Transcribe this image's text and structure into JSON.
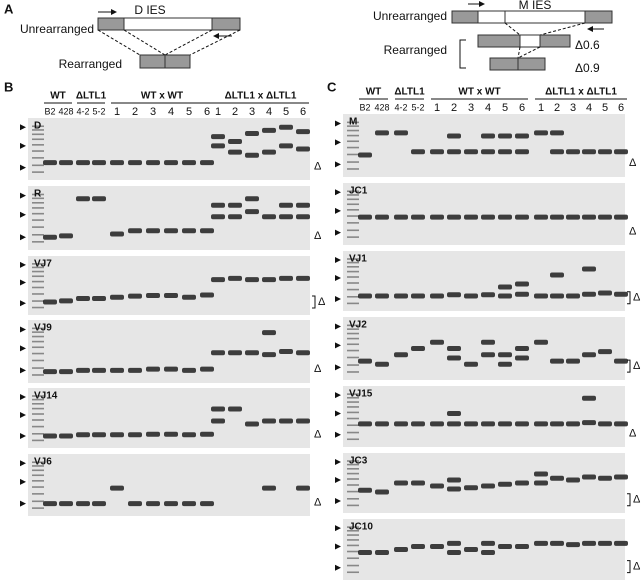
{
  "panel_a": {
    "label": "A",
    "left": {
      "title": "D IES",
      "unrearranged": "Unrearranged",
      "rearranged": "Rearranged"
    },
    "right": {
      "title": "M IES",
      "unrearranged": "Unrearranged",
      "rearranged": "Rearranged",
      "products": [
        "Δ0.6",
        "Δ0.9"
      ]
    }
  },
  "panel_b": {
    "label": "B",
    "groups": [
      "WT",
      "ΔLTL1",
      "WT x WT",
      "ΔLTL1 x ΔLTL1"
    ],
    "lanes": [
      "B2",
      "428",
      "4-2",
      "5-2",
      "1",
      "2",
      "3",
      "4",
      "5",
      "6",
      "1",
      "2",
      "3",
      "4",
      "5",
      "6"
    ],
    "gels": [
      "D",
      "R",
      "VJ7",
      "VJ9",
      "VJ14",
      "VJ6"
    ],
    "delta": "Δ"
  },
  "panel_c": {
    "label": "C",
    "groups": [
      "WT",
      "ΔLTL1",
      "WT x WT",
      "ΔLTL1 x ΔLTL1"
    ],
    "lanes": [
      "B2",
      "428",
      "4-2",
      "5-2",
      "1",
      "2",
      "3",
      "4",
      "5",
      "6",
      "1",
      "2",
      "3",
      "4",
      "5",
      "6"
    ],
    "gels": [
      "M",
      "JC1",
      "VJ1",
      "VJ2",
      "VJ15",
      "JC3",
      "JC10"
    ],
    "delta": "Δ"
  }
}
